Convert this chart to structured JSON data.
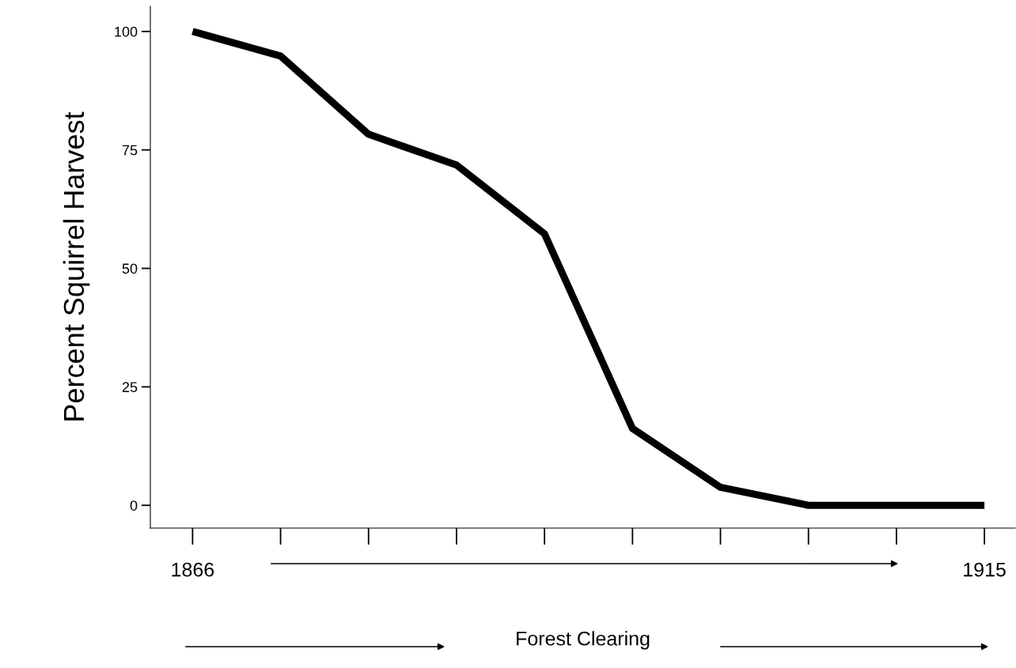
{
  "chart_data": {
    "type": "line",
    "xlabel": "Forest Clearing",
    "ylabel": "Percent Squirrel Harvest",
    "categories": [
      "1866",
      null,
      null,
      null,
      null,
      null,
      null,
      null,
      null,
      "1915"
    ],
    "series": [
      {
        "color": "#000000",
        "values": [
          100,
          94.8,
          78.3,
          71.8,
          57.3,
          16.2,
          3.8,
          0,
          0,
          0
        ]
      }
    ],
    "ylim": [
      -4.8,
      105.3
    ],
    "yticks": [
      0,
      25,
      50,
      75,
      100
    ],
    "grid": false,
    "legend": false,
    "marker": "none",
    "line_style": "solid"
  }
}
